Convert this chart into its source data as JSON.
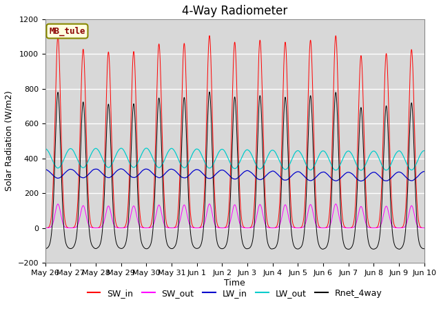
{
  "title": "4-Way Radiometer",
  "xlabel": "Time",
  "ylabel": "Solar Radiation (W/m2)",
  "ylim": [
    -200,
    1200
  ],
  "annotation": "MB_tule",
  "x_tick_labels": [
    "May 26",
    "May 27",
    "May 28",
    "May 29",
    "May 30",
    "May 31",
    "Jun 1",
    "Jun 2",
    "Jun 3",
    "Jun 4",
    "Jun 5",
    "Jun 6",
    "Jun 7",
    "Jun 8",
    "Jun 9",
    "Jun 10"
  ],
  "legend": [
    "SW_in",
    "SW_out",
    "LW_in",
    "LW_out",
    "Rnet_4way"
  ],
  "colors": {
    "SW_in": "#ff0000",
    "SW_out": "#ff00ff",
    "LW_in": "#0000cc",
    "LW_out": "#00cccc",
    "Rnet_4way": "#000000"
  },
  "n_days": 15,
  "points_per_day": 288,
  "SW_in_peak": 1050,
  "LW_in_base": 305,
  "LW_in_amplitude": 25,
  "LW_out_base": 395,
  "LW_out_amplitude": 55,
  "background_color": "#d8d8d8",
  "grid_color": "#ffffff",
  "title_fontsize": 12,
  "label_fontsize": 9,
  "tick_fontsize": 8,
  "legend_fontsize": 9,
  "figwidth": 6.4,
  "figheight": 4.8,
  "dpi": 100
}
